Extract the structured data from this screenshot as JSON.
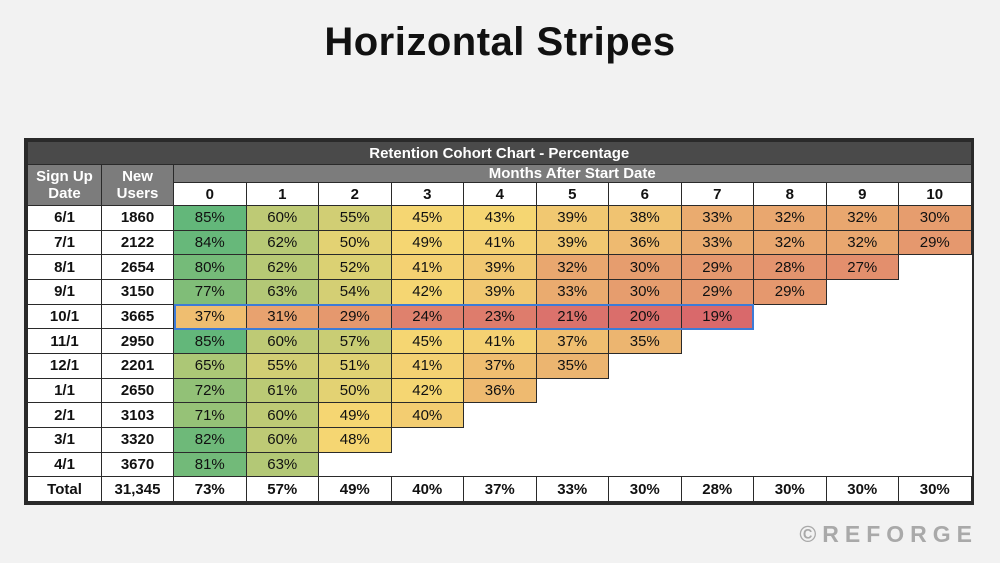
{
  "page": {
    "title": "Horizontal Stripes",
    "watermark": "©REFORGE"
  },
  "chart_data": {
    "type": "table",
    "title": "Retention Cohort Chart - Percentage",
    "col_header_date": "Sign Up Date",
    "col_header_users": "New Users",
    "months_header": "Months After Start Date",
    "months": [
      "0",
      "1",
      "2",
      "3",
      "4",
      "5",
      "6",
      "7",
      "8",
      "9",
      "10"
    ],
    "rows": [
      {
        "date": "6/1",
        "users": "1860",
        "values": [
          85,
          60,
          55,
          45,
          43,
          39,
          38,
          33,
          32,
          32,
          30
        ]
      },
      {
        "date": "7/1",
        "users": "2122",
        "values": [
          84,
          62,
          50,
          49,
          41,
          39,
          36,
          33,
          32,
          32,
          29
        ]
      },
      {
        "date": "8/1",
        "users": "2654",
        "values": [
          80,
          62,
          52,
          41,
          39,
          32,
          30,
          29,
          28,
          27
        ]
      },
      {
        "date": "9/1",
        "users": "3150",
        "values": [
          77,
          63,
          54,
          42,
          39,
          33,
          30,
          29,
          29
        ]
      },
      {
        "date": "10/1",
        "users": "3665",
        "values": [
          37,
          31,
          29,
          24,
          23,
          21,
          20,
          19
        ],
        "highlighted": true
      },
      {
        "date": "11/1",
        "users": "2950",
        "values": [
          85,
          60,
          57,
          45,
          41,
          37,
          35
        ]
      },
      {
        "date": "12/1",
        "users": "2201",
        "values": [
          65,
          55,
          51,
          41,
          37,
          35
        ]
      },
      {
        "date": "1/1",
        "users": "2650",
        "values": [
          72,
          61,
          50,
          42,
          36
        ]
      },
      {
        "date": "2/1",
        "users": "3103",
        "values": [
          71,
          60,
          49,
          40
        ]
      },
      {
        "date": "3/1",
        "users": "3320",
        "values": [
          82,
          60,
          48
        ]
      },
      {
        "date": "4/1",
        "users": "3670",
        "values": [
          81,
          63
        ]
      }
    ],
    "total": {
      "label": "Total",
      "users": "31,345",
      "values": [
        73,
        57,
        49,
        40,
        37,
        33,
        30,
        28,
        30,
        30,
        30
      ]
    },
    "value_suffix": "%",
    "colors": {
      "high": "#63b77a",
      "mid": "#f5d672",
      "low": "#d9696b",
      "highlight_border": "#3d7bd6"
    }
  }
}
